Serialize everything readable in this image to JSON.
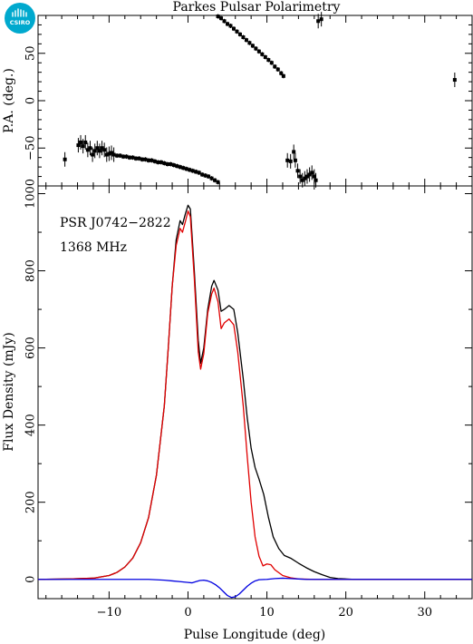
{
  "title": "Parkes Pulsar Polarimetry",
  "logo": {
    "text": "CSIRO",
    "color": "#00a9ce"
  },
  "colors": {
    "total": "#000000",
    "linear": "#e00000",
    "circular": "#0000e0"
  },
  "chart_data": [
    {
      "type": "scatter",
      "name": "pa-panel",
      "ylabel": "P.A. (deg.)",
      "xlim": [
        -19,
        36
      ],
      "ylim": [
        -90,
        90
      ],
      "yticks": [
        -50,
        0,
        50
      ],
      "ytick_labels": [
        "−50",
        "0",
        "50"
      ],
      "series": [
        {
          "points": [
            [
              -15.6,
              -62
            ],
            [
              -13.9,
              -47
            ],
            [
              -13.6,
              -44
            ],
            [
              -13.3,
              -48
            ],
            [
              -13.0,
              -44
            ],
            [
              -12.7,
              -52
            ],
            [
              -12.4,
              -50
            ],
            [
              -12.1,
              -57
            ],
            [
              -11.8,
              -53
            ],
            [
              -11.5,
              -50
            ],
            [
              -11.2,
              -53
            ],
            [
              -10.9,
              -50
            ],
            [
              -10.6,
              -52
            ],
            [
              -10.3,
              -57
            ],
            [
              -10.0,
              -56
            ],
            [
              -9.7,
              -55
            ],
            [
              -9.4,
              -57
            ],
            [
              -9.0,
              -58
            ],
            [
              -8.6,
              -58
            ],
            [
              -8.2,
              -59
            ],
            [
              -7.8,
              -59
            ],
            [
              -7.4,
              -60
            ],
            [
              -7.0,
              -60
            ],
            [
              -6.6,
              -61
            ],
            [
              -6.2,
              -61
            ],
            [
              -5.8,
              -62
            ],
            [
              -5.4,
              -62
            ],
            [
              -5.0,
              -63
            ],
            [
              -4.6,
              -63
            ],
            [
              -4.2,
              -64
            ],
            [
              -3.8,
              -65
            ],
            [
              -3.4,
              -65
            ],
            [
              -3.0,
              -66
            ],
            [
              -2.6,
              -67
            ],
            [
              -2.2,
              -67
            ],
            [
              -1.8,
              -68
            ],
            [
              -1.4,
              -69
            ],
            [
              -1.0,
              -70
            ],
            [
              -0.6,
              -71
            ],
            [
              -0.2,
              -72
            ],
            [
              0.2,
              -73
            ],
            [
              0.6,
              -74
            ],
            [
              1.0,
              -75
            ],
            [
              1.4,
              -76
            ],
            [
              1.8,
              -78
            ],
            [
              2.2,
              -79
            ],
            [
              2.6,
              -80
            ],
            [
              3.0,
              -82
            ],
            [
              3.4,
              -84
            ],
            [
              3.8,
              -86
            ],
            [
              3.8,
              89
            ],
            [
              4.2,
              87
            ],
            [
              4.6,
              84
            ],
            [
              5.0,
              81
            ],
            [
              5.4,
              79
            ],
            [
              5.8,
              76
            ],
            [
              6.2,
              73
            ],
            [
              6.6,
              70
            ],
            [
              7.0,
              67
            ],
            [
              7.4,
              64
            ],
            [
              7.8,
              61
            ],
            [
              8.2,
              58
            ],
            [
              8.6,
              55
            ],
            [
              9.0,
              52
            ],
            [
              9.4,
              49
            ],
            [
              9.8,
              46
            ],
            [
              10.2,
              43
            ],
            [
              10.6,
              40
            ],
            [
              11.0,
              36
            ],
            [
              11.4,
              33
            ],
            [
              11.8,
              29
            ],
            [
              12.1,
              26
            ],
            [
              12.6,
              -63
            ],
            [
              13.0,
              -64
            ],
            [
              13.4,
              -54
            ],
            [
              13.6,
              -63
            ],
            [
              13.9,
              -74
            ],
            [
              14.2,
              -80
            ],
            [
              14.5,
              -84
            ],
            [
              14.8,
              -82
            ],
            [
              15.1,
              -80
            ],
            [
              15.4,
              -78
            ],
            [
              15.7,
              -76
            ],
            [
              16.0,
              -80
            ],
            [
              16.2,
              -84
            ],
            [
              16.5,
              84
            ],
            [
              16.9,
              86
            ],
            [
              33.8,
              22
            ]
          ]
        }
      ]
    },
    {
      "type": "line",
      "name": "flux-panel",
      "xlabel": "Pulse Longitude (deg)",
      "ylabel": "Flux Density (mJy)",
      "xlim": [
        -19,
        36
      ],
      "ylim": [
        -50,
        1020
      ],
      "xticks": [
        -10,
        0,
        10,
        20,
        30
      ],
      "xtick_labels": [
        "−10",
        "0",
        "10",
        "20",
        "30"
      ],
      "yticks": [
        0,
        200,
        400,
        600,
        800,
        1000
      ],
      "ytick_labels": [
        "0",
        "200",
        "400",
        "600",
        "800",
        "1000"
      ],
      "annotations": [
        "PSR J0742−2822",
        "1368 MHz"
      ],
      "series": [
        {
          "name": "Total intensity",
          "color": "#000000",
          "points": [
            [
              -19,
              0
            ],
            [
              -15,
              1
            ],
            [
              -12,
              3
            ],
            [
              -10,
              10
            ],
            [
              -9,
              18
            ],
            [
              -8,
              32
            ],
            [
              -7,
              55
            ],
            [
              -6,
              95
            ],
            [
              -5,
              160
            ],
            [
              -4,
              270
            ],
            [
              -3,
              450
            ],
            [
              -2.5,
              600
            ],
            [
              -2,
              760
            ],
            [
              -1.5,
              880
            ],
            [
              -1,
              930
            ],
            [
              -0.7,
              920
            ],
            [
              -0.3,
              950
            ],
            [
              0,
              970
            ],
            [
              0.3,
              960
            ],
            [
              0.8,
              800
            ],
            [
              1.3,
              620
            ],
            [
              1.6,
              560
            ],
            [
              2,
              600
            ],
            [
              2.5,
              700
            ],
            [
              3,
              760
            ],
            [
              3.3,
              775
            ],
            [
              3.8,
              750
            ],
            [
              4.2,
              695
            ],
            [
              4.6,
              700
            ],
            [
              5.2,
              710
            ],
            [
              5.8,
              700
            ],
            [
              6.3,
              640
            ],
            [
              7,
              520
            ],
            [
              7.5,
              420
            ],
            [
              8,
              340
            ],
            [
              8.5,
              290
            ],
            [
              9,
              260
            ],
            [
              9.6,
              220
            ],
            [
              10.2,
              160
            ],
            [
              10.8,
              110
            ],
            [
              11.5,
              80
            ],
            [
              12.2,
              62
            ],
            [
              13,
              55
            ],
            [
              14,
              42
            ],
            [
              15,
              30
            ],
            [
              16,
              20
            ],
            [
              17,
              12
            ],
            [
              18,
              5
            ],
            [
              19,
              2
            ],
            [
              21,
              0
            ],
            [
              36,
              0
            ]
          ]
        },
        {
          "name": "Linear polarization",
          "color": "#e00000",
          "points": [
            [
              -19,
              0
            ],
            [
              -15,
              1
            ],
            [
              -12,
              3
            ],
            [
              -10,
              10
            ],
            [
              -9,
              18
            ],
            [
              -8,
              32
            ],
            [
              -7,
              55
            ],
            [
              -6,
              95
            ],
            [
              -5,
              160
            ],
            [
              -4,
              270
            ],
            [
              -3,
              450
            ],
            [
              -2.5,
              600
            ],
            [
              -2,
              760
            ],
            [
              -1.5,
              865
            ],
            [
              -1,
              910
            ],
            [
              -0.7,
              900
            ],
            [
              -0.3,
              930
            ],
            [
              0,
              955
            ],
            [
              0.3,
              940
            ],
            [
              0.8,
              780
            ],
            [
              1.3,
              590
            ],
            [
              1.6,
              545
            ],
            [
              2,
              585
            ],
            [
              2.5,
              690
            ],
            [
              3,
              740
            ],
            [
              3.3,
              755
            ],
            [
              3.8,
              720
            ],
            [
              4.2,
              650
            ],
            [
              4.6,
              665
            ],
            [
              5.2,
              675
            ],
            [
              5.8,
              660
            ],
            [
              6.3,
              590
            ],
            [
              7,
              450
            ],
            [
              7.5,
              320
            ],
            [
              8,
              200
            ],
            [
              8.5,
              110
            ],
            [
              9,
              60
            ],
            [
              9.5,
              35
            ],
            [
              10,
              40
            ],
            [
              10.5,
              38
            ],
            [
              11,
              25
            ],
            [
              12,
              10
            ],
            [
              13,
              4
            ],
            [
              14,
              1
            ],
            [
              16,
              0
            ],
            [
              36,
              0
            ]
          ]
        },
        {
          "name": "Circular polarization",
          "color": "#0000e0",
          "points": [
            [
              -19,
              0
            ],
            [
              -10,
              0
            ],
            [
              -8,
              0
            ],
            [
              -5,
              0
            ],
            [
              -3,
              -2
            ],
            [
              -2,
              -4
            ],
            [
              -1,
              -6
            ],
            [
              0,
              -8
            ],
            [
              0.5,
              -9
            ],
            [
              1,
              -6
            ],
            [
              1.5,
              -3
            ],
            [
              2,
              -2
            ],
            [
              2.5,
              -4
            ],
            [
              3,
              -8
            ],
            [
              3.5,
              -14
            ],
            [
              4,
              -22
            ],
            [
              4.5,
              -32
            ],
            [
              5,
              -42
            ],
            [
              5.5,
              -47
            ],
            [
              6,
              -45
            ],
            [
              6.5,
              -38
            ],
            [
              7,
              -28
            ],
            [
              7.5,
              -18
            ],
            [
              8,
              -10
            ],
            [
              8.5,
              -4
            ],
            [
              9,
              -1
            ],
            [
              10,
              0
            ],
            [
              11,
              2
            ],
            [
              12,
              3
            ],
            [
              13,
              2
            ],
            [
              14,
              1
            ],
            [
              15,
              0
            ],
            [
              20,
              0
            ],
            [
              36,
              0
            ]
          ]
        }
      ]
    }
  ]
}
